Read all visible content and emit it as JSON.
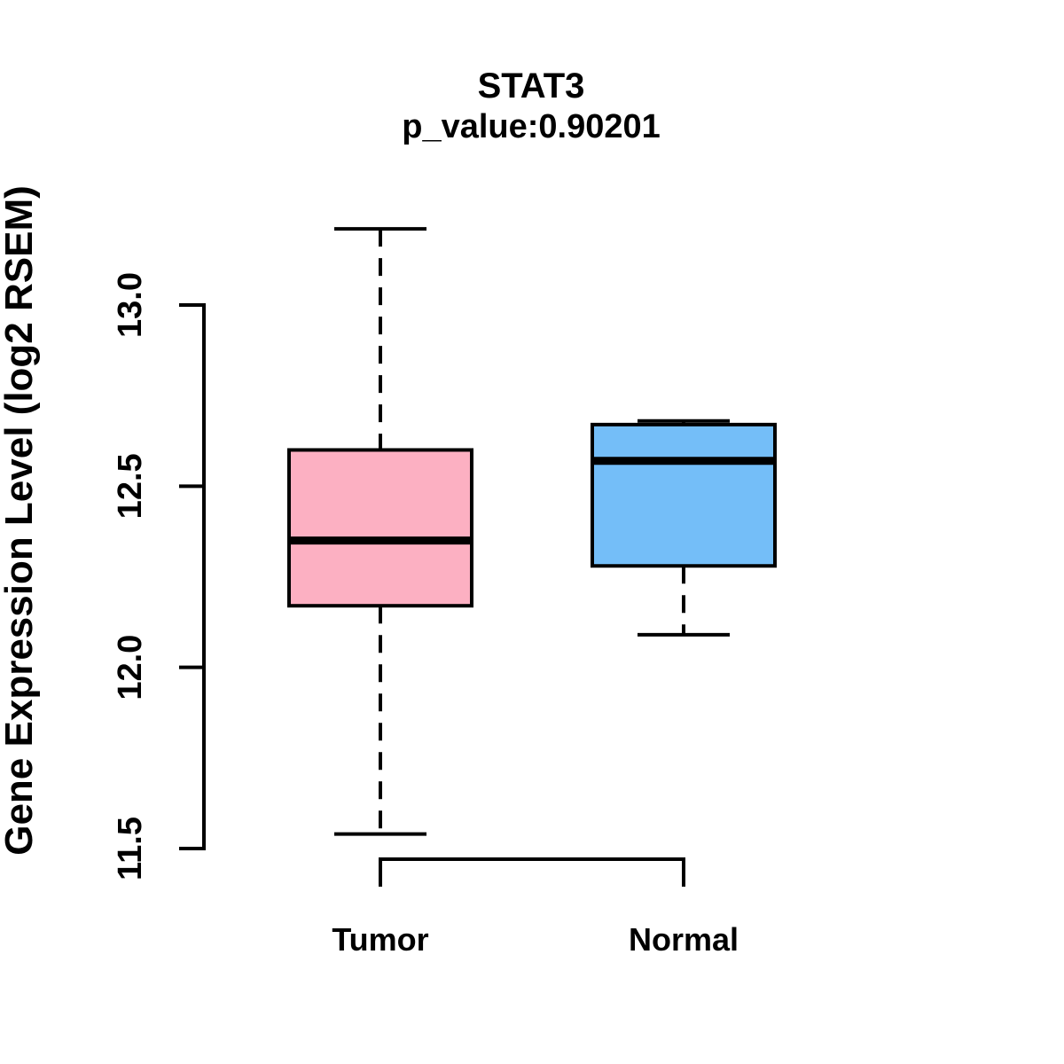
{
  "figure": {
    "background": "#FFFFFF"
  },
  "chart_data": {
    "type": "boxplot",
    "title": "STAT3",
    "subtitle": "p_value:0.90201",
    "gene": "STAT3",
    "p_value": "0.90201",
    "ylabel": "Gene Expression Level (log2 RSEM)",
    "xlabel": "",
    "ylim": [
      11.4,
      13.25
    ],
    "yticks": [
      "11.5",
      "12.0",
      "12.5",
      "13.0"
    ],
    "ytick_values": [
      11.5,
      12.0,
      12.5,
      13.0
    ],
    "grid": false,
    "legend": "none",
    "categories": [
      "Tumor",
      "Normal"
    ],
    "series": [
      {
        "name": "Tumor",
        "fill_color": "#FCB0C2",
        "whisker_low": 11.54,
        "q1": 12.17,
        "median": 12.35,
        "q3": 12.6,
        "whisker_high": 13.21
      },
      {
        "name": "Normal",
        "fill_color": "#74BEF8",
        "whisker_low": 12.09,
        "q1": 12.28,
        "median": 12.57,
        "q3": 12.67,
        "whisker_high": 12.68
      }
    ],
    "box_border_color": "#000000",
    "median_line_color": "#000000",
    "whisker_style": "dashed"
  }
}
